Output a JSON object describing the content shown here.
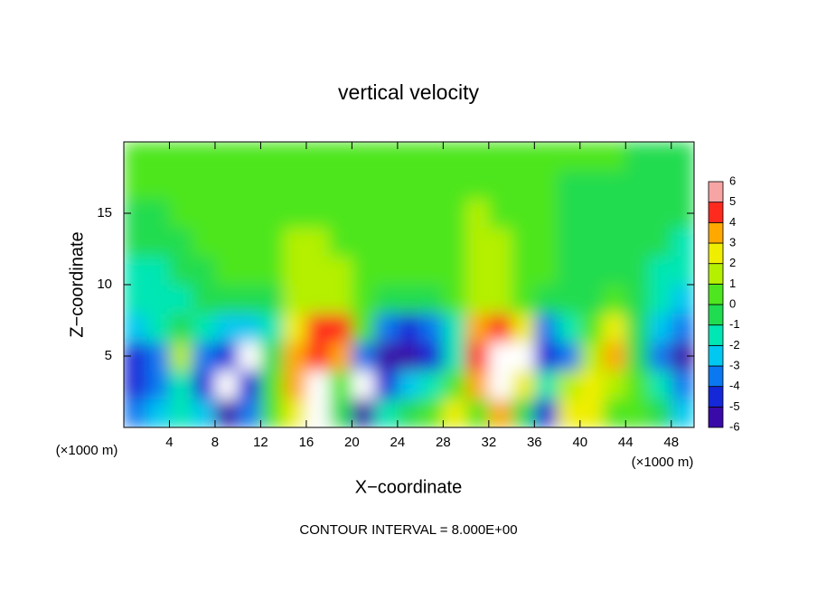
{
  "chart_data": {
    "type": "contour",
    "title": "vertical velocity",
    "xlabel": "X−coordinate",
    "ylabel": "Z−coordinate",
    "x_unit_label": "(×1000 m)",
    "note": "CONTOUR INTERVAL = 8.000E+00",
    "xlim": [
      0,
      50
    ],
    "ylim": [
      0,
      20
    ],
    "xticks": [
      4,
      8,
      12,
      16,
      20,
      24,
      28,
      32,
      36,
      40,
      44,
      48
    ],
    "yticks": [
      5,
      10,
      15
    ],
    "colorbar_ticks": [
      -6,
      -5,
      -4,
      -3,
      -2,
      -1,
      0,
      1,
      2,
      3,
      4,
      5,
      6
    ],
    "colors": [
      "#3a0aa8",
      "#1428d8",
      "#0a78f0",
      "#00c8f0",
      "#00e6b4",
      "#20dc50",
      "#4ee61e",
      "#b4f000",
      "#f0ee00",
      "#ffa800",
      "#ff2a1e",
      "#f7a4a4"
    ],
    "out_of_range_color": "#ffffff",
    "x": [
      1,
      3,
      5,
      7,
      9,
      11,
      13,
      15,
      17,
      19,
      21,
      23,
      25,
      27,
      29,
      31,
      33,
      35,
      37,
      39,
      41,
      43,
      45,
      47,
      49
    ],
    "y": [
      1,
      3,
      5,
      7,
      9,
      11,
      13,
      15,
      17,
      19
    ],
    "z": [
      [
        -3,
        -2,
        -1,
        -2,
        -5,
        -3,
        0.5,
        3,
        6.5,
        0,
        -5,
        -1,
        -0.5,
        1,
        3,
        1,
        4,
        0,
        -4,
        3,
        3,
        1,
        1,
        -0.5,
        -2
      ],
      [
        -4,
        -3,
        -1,
        -4,
        -7,
        -4,
        0.5,
        4,
        7,
        1,
        -6.5,
        -4,
        -2,
        -1,
        0.5,
        4,
        7,
        3,
        -1,
        2,
        3,
        1.5,
        1,
        -1,
        -3
      ],
      [
        -4.5,
        -3,
        2,
        -3,
        -4,
        -7,
        0,
        4,
        5,
        4,
        -3,
        -5,
        -5.5,
        -4,
        -1,
        5,
        7,
        7,
        -4,
        -3,
        2,
        4,
        0,
        -3,
        -5
      ],
      [
        -2,
        -1,
        0,
        -1,
        -2,
        -2,
        -1,
        3,
        5,
        5,
        1,
        -3,
        -4,
        -3,
        -1,
        4,
        5,
        3,
        -3,
        -1,
        1,
        3,
        0,
        -2,
        -3
      ],
      [
        -1.5,
        -1.5,
        -1,
        -0.5,
        0,
        -0.5,
        0,
        1.5,
        2,
        2,
        1,
        0,
        -0.5,
        0,
        0.5,
        1.5,
        2,
        1,
        0,
        -0.5,
        0,
        0.5,
        -0.5,
        -1.5,
        -2
      ],
      [
        -1,
        -1,
        -0.5,
        0,
        0.5,
        0.8,
        1,
        1.5,
        1.5,
        1.2,
        0.8,
        0.5,
        0.2,
        0.3,
        0.8,
        1.5,
        1.5,
        1,
        0.5,
        0,
        0,
        0,
        -0.5,
        -1,
        -1.5
      ],
      [
        -0.3,
        -0.3,
        0,
        0.3,
        0.6,
        0.8,
        1,
        1.3,
        1.3,
        1,
        0.7,
        0.4,
        0.2,
        0.3,
        0.8,
        1.3,
        1.2,
        0.8,
        0.3,
        0,
        -0.3,
        -0.3,
        -0.5,
        -0.8,
        -1
      ],
      [
        0,
        0,
        0.2,
        0.4,
        0.5,
        0.6,
        0.8,
        1,
        1,
        0.8,
        0.5,
        0.3,
        0.2,
        0.3,
        0.7,
        1.1,
        1,
        0.6,
        0.2,
        0,
        -0.2,
        -0.1,
        -0.3,
        -0.5,
        -0.6
      ],
      [
        0.2,
        0.2,
        0.3,
        0.4,
        0.4,
        0.4,
        0.5,
        0.7,
        0.7,
        0.5,
        0.3,
        0.2,
        0.2,
        0.3,
        0.5,
        0.8,
        0.7,
        0.4,
        0.2,
        0,
        0,
        0,
        -0.1,
        -0.2,
        -0.3
      ],
      [
        0.3,
        0.3,
        0.3,
        0.3,
        0.3,
        0.3,
        0.3,
        0.4,
        0.4,
        0.3,
        0.3,
        0.2,
        0.2,
        0.2,
        0.3,
        0.5,
        0.4,
        0.3,
        0.2,
        0.1,
        0.1,
        0.1,
        0,
        0,
        0
      ]
    ]
  }
}
